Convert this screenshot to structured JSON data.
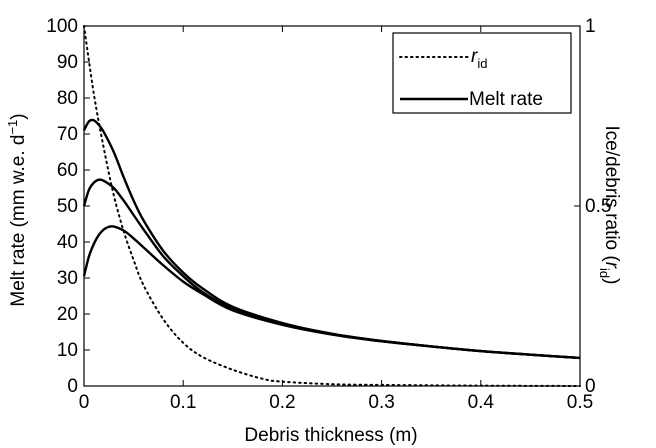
{
  "chart_data": {
    "type": "line",
    "xlabel": "Debris thickness (m)",
    "ylabel": "Melt rate (mm w.e. d⁻¹)",
    "y2label": "Ice/debris ratio (r_id)",
    "xlim": [
      0,
      0.5
    ],
    "ylim": [
      0,
      100
    ],
    "y2lim": [
      0,
      1
    ],
    "x_ticks": [
      "0",
      "0.1",
      "0.2",
      "0.3",
      "0.4",
      "0.5"
    ],
    "y_ticks": [
      "0",
      "10",
      "20",
      "30",
      "40",
      "50",
      "60",
      "70",
      "80",
      "90",
      "100"
    ],
    "y2_ticks": [
      "0",
      "0.5",
      "1"
    ],
    "grid": false,
    "legend_position": "top-right",
    "legend": [
      {
        "symbol": "r",
        "subscript": "id",
        "style": "dotted"
      },
      {
        "label": "Melt rate",
        "style": "solid"
      }
    ],
    "series": [
      {
        "style": "dotted",
        "axis": "right",
        "x": [
          0,
          0.01,
          0.02,
          0.03,
          0.04,
          0.05,
          0.06,
          0.08,
          0.1,
          0.12,
          0.15,
          0.18,
          0.2,
          0.25,
          0.3,
          0.4,
          0.5
        ],
        "y": [
          1.0,
          0.81,
          0.66,
          0.53,
          0.43,
          0.35,
          0.28,
          0.185,
          0.12,
          0.08,
          0.045,
          0.02,
          0.012,
          0.005,
          0.003,
          0.001,
          0.0
        ]
      },
      {
        "style": "solid",
        "axis": "left",
        "x": [
          0,
          0.005,
          0.01,
          0.015,
          0.02,
          0.03,
          0.04,
          0.05,
          0.06,
          0.08,
          0.1,
          0.12,
          0.15,
          0.2,
          0.25,
          0.3,
          0.35,
          0.4,
          0.45,
          0.5
        ],
        "y": [
          71,
          73.5,
          73.8,
          72.5,
          70.5,
          65,
          58,
          51.5,
          46,
          37.5,
          31.5,
          27,
          22,
          17.5,
          14.5,
          12.5,
          11,
          9.7,
          8.7,
          7.8
        ]
      },
      {
        "style": "solid",
        "axis": "left",
        "x": [
          0,
          0.005,
          0.01,
          0.015,
          0.02,
          0.03,
          0.04,
          0.05,
          0.06,
          0.08,
          0.1,
          0.12,
          0.15,
          0.2,
          0.25,
          0.3,
          0.35,
          0.4,
          0.45,
          0.5
        ],
        "y": [
          50,
          54.5,
          56.5,
          57.3,
          57,
          55,
          51.5,
          47.5,
          43.5,
          36,
          30.5,
          26,
          21.5,
          17.3,
          14.5,
          12.5,
          11,
          9.7,
          8.7,
          7.8
        ]
      },
      {
        "style": "solid",
        "axis": "left",
        "x": [
          0,
          0.005,
          0.01,
          0.015,
          0.02,
          0.025,
          0.03,
          0.04,
          0.05,
          0.06,
          0.08,
          0.1,
          0.12,
          0.15,
          0.2,
          0.25,
          0.3,
          0.35,
          0.4,
          0.45,
          0.5
        ],
        "y": [
          30.5,
          36,
          39.5,
          42,
          43.5,
          44.2,
          44.3,
          43.2,
          41,
          38.5,
          33.5,
          29,
          25.5,
          21,
          17,
          14.3,
          12.4,
          11,
          9.7,
          8.7,
          7.8
        ]
      }
    ]
  }
}
